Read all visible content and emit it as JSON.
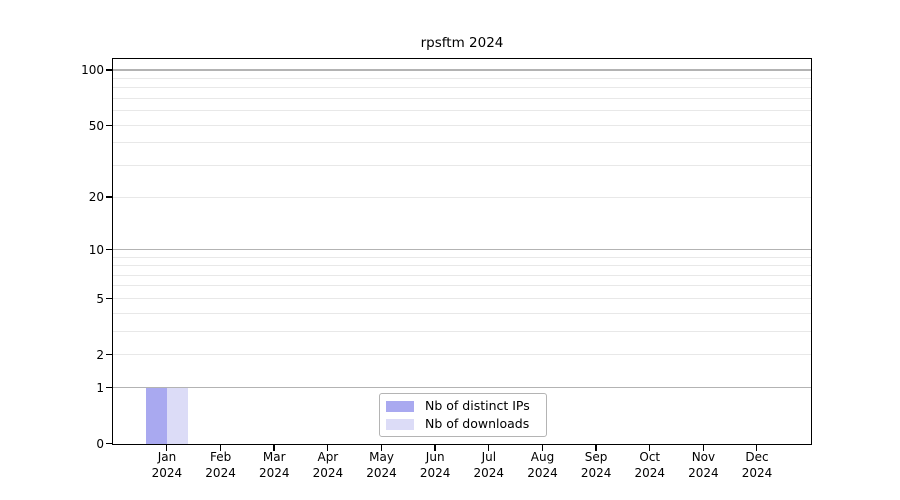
{
  "chart_data": {
    "type": "bar",
    "title": "rpsftm 2024",
    "xlabel": "",
    "ylabel": "",
    "categories": [
      "Jan 2024",
      "Feb 2024",
      "Mar 2024",
      "Apr 2024",
      "May 2024",
      "Jun 2024",
      "Jul 2024",
      "Aug 2024",
      "Sep 2024",
      "Oct 2024",
      "Nov 2024",
      "Dec 2024"
    ],
    "series": [
      {
        "name": "Nb of distinct IPs",
        "color": "#a9a9f0",
        "values": [
          1,
          0,
          0,
          0,
          0,
          0,
          0,
          0,
          0,
          0,
          0,
          0
        ]
      },
      {
        "name": "Nb of downloads",
        "color": "#dcdcf7",
        "values": [
          1,
          0,
          0,
          0,
          0,
          0,
          0,
          0,
          0,
          0,
          0,
          0
        ]
      }
    ],
    "y_axis": {
      "scale": "log1p",
      "tick_values": [
        0,
        1,
        2,
        5,
        10,
        20,
        50,
        100
      ],
      "major_grid_values": [
        1,
        10,
        100
      ],
      "minor_grid_values": [
        2,
        3,
        4,
        5,
        6,
        7,
        8,
        9,
        20,
        30,
        40,
        50,
        60,
        70,
        80,
        90
      ],
      "range": [
        0,
        115
      ]
    },
    "grid": "horizontal",
    "legend": {
      "position": "bottom-center",
      "entries": [
        "Nb of distinct IPs",
        "Nb of downloads"
      ]
    },
    "colors": {
      "axis": "#000000",
      "major_grid": "#b3b3b3",
      "minor_grid": "#e8e8e8",
      "background": "#ffffff"
    }
  }
}
